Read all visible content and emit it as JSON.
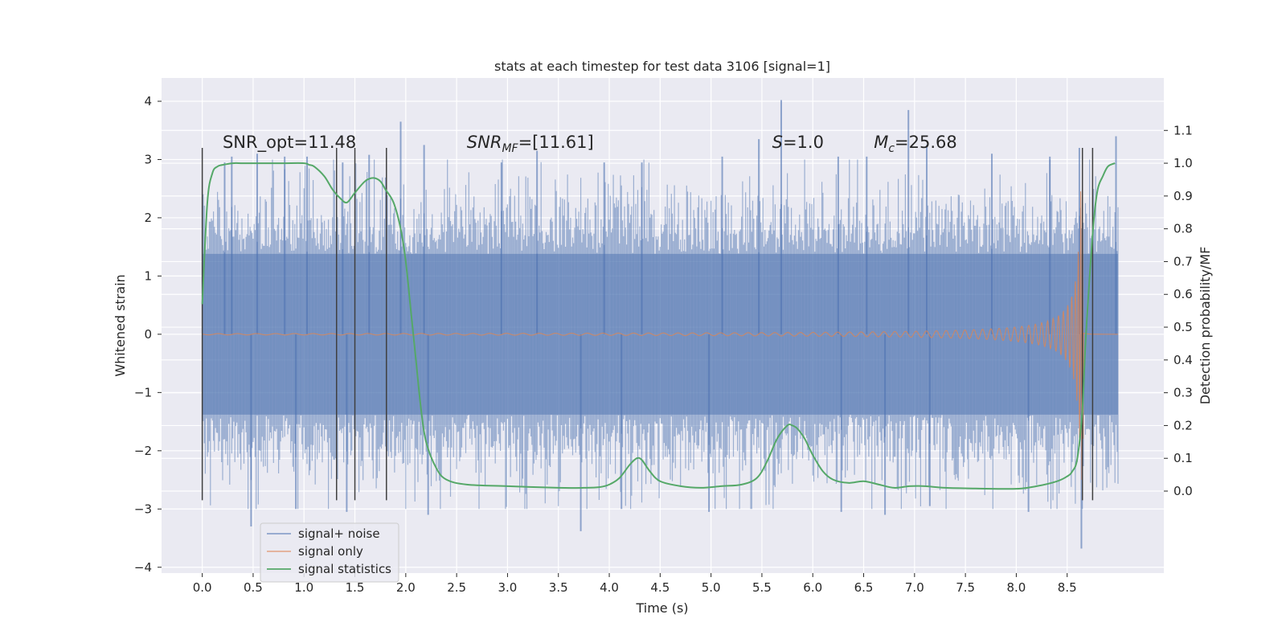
{
  "chart_data": {
    "type": "line",
    "title": "stats at each timestep for test data 3106 [signal=1]",
    "xlabel": "Time (s)",
    "ylabel": "Whitened strain",
    "y2label": "Detection probability/MF",
    "xlim": [
      -0.4,
      9.45
    ],
    "ylim": [
      -4.1,
      4.4
    ],
    "y2lim": [
      -0.25,
      1.26
    ],
    "xticks": [
      0.0,
      0.5,
      1.0,
      1.5,
      2.0,
      2.5,
      3.0,
      3.5,
      4.0,
      4.5,
      5.0,
      5.5,
      6.0,
      6.5,
      7.0,
      7.5,
      8.0,
      8.5
    ],
    "xtick_labels": [
      "0.0",
      "0.5",
      "1.0",
      "1.5",
      "2.0",
      "2.5",
      "3.0",
      "3.5",
      "4.0",
      "4.5",
      "5.0",
      "5.5",
      "6.0",
      "6.5",
      "7.0",
      "7.5",
      "8.0",
      "8.5"
    ],
    "yticks": [
      -4,
      -3,
      -2,
      -1,
      0,
      1,
      2,
      3,
      4
    ],
    "ytick_labels": [
      "−4",
      "−3",
      "−2",
      "−1",
      "0",
      "1",
      "2",
      "3",
      "4"
    ],
    "y2ticks": [
      0.0,
      0.1,
      0.2,
      0.3,
      0.4,
      0.5,
      0.6,
      0.7,
      0.8,
      0.9,
      1.0,
      1.1
    ],
    "y2tick_labels": [
      "0.0",
      "0.1",
      "0.2",
      "0.3",
      "0.4",
      "0.5",
      "0.6",
      "0.7",
      "0.8",
      "0.9",
      "1.0",
      "1.1"
    ],
    "grid": true,
    "legend_position": "lower-left",
    "legend": [
      "signal+ noise",
      "signal only",
      "signal statistics"
    ],
    "colors": {
      "noise": "#4c72b0",
      "signal": "#dd8452",
      "stats": "#55a868",
      "vline": "#404040",
      "background": "#eaeaf2",
      "grid": "#ffffff"
    },
    "annotations": [
      {
        "label": "SNR_opt=11.48",
        "x": 0.2
      },
      {
        "label_main": "SNR",
        "label_sub": "MF",
        "label_suffix": "=[11.61]",
        "x": 2.6
      },
      {
        "label_main": "S",
        "label_suffix": "=1.0",
        "x": 5.6
      },
      {
        "label_main": "M",
        "label_sub": "c",
        "label_suffix": "=25.68",
        "x": 6.6
      }
    ],
    "annotation_y": 3.2,
    "vlines": [
      0.0,
      1.32,
      1.5,
      1.81,
      8.65,
      8.75
    ],
    "vline_range": [
      -2.85,
      3.2
    ],
    "signal_plus_noise": {
      "x_range": [
        0.0,
        9.0
      ],
      "core_amplitude": 1.38,
      "peaks": [
        {
          "x": 0.22,
          "y": 2.95
        },
        {
          "x": 0.29,
          "y": 3.05
        },
        {
          "x": 0.54,
          "y": 3.1
        },
        {
          "x": 0.81,
          "y": 3.05
        },
        {
          "x": 1.03,
          "y": 3.05
        },
        {
          "x": 1.38,
          "y": 2.95
        },
        {
          "x": 1.64,
          "y": 3.08
        },
        {
          "x": 1.95,
          "y": 3.65
        },
        {
          "x": 2.18,
          "y": 3.25
        },
        {
          "x": 2.94,
          "y": 2.95
        },
        {
          "x": 3.29,
          "y": 3.15
        },
        {
          "x": 3.95,
          "y": 2.95
        },
        {
          "x": 4.32,
          "y": 2.95
        },
        {
          "x": 5.11,
          "y": 3.05
        },
        {
          "x": 5.47,
          "y": 3.35
        },
        {
          "x": 5.69,
          "y": 4.02
        },
        {
          "x": 6.25,
          "y": 3.05
        },
        {
          "x": 6.53,
          "y": 3.05
        },
        {
          "x": 6.94,
          "y": 3.85
        },
        {
          "x": 7.12,
          "y": 3.25
        },
        {
          "x": 7.76,
          "y": 3.1
        },
        {
          "x": 8.33,
          "y": 3.05
        },
        {
          "x": 8.62,
          "y": 3.2
        },
        {
          "x": 8.98,
          "y": 3.4
        }
      ],
      "troughs": [
        {
          "x": 0.48,
          "y": -3.3
        },
        {
          "x": 0.92,
          "y": -3.0
        },
        {
          "x": 1.42,
          "y": -3.05
        },
        {
          "x": 2.22,
          "y": -3.1
        },
        {
          "x": 3.72,
          "y": -3.38
        },
        {
          "x": 4.12,
          "y": -3.0
        },
        {
          "x": 4.98,
          "y": -3.05
        },
        {
          "x": 6.28,
          "y": -3.05
        },
        {
          "x": 6.71,
          "y": -3.1
        },
        {
          "x": 7.15,
          "y": -2.95
        },
        {
          "x": 8.12,
          "y": -3.05
        },
        {
          "x": 8.64,
          "y": -3.68
        }
      ]
    },
    "signal_only": {
      "x_range": [
        0.0,
        9.0
      ],
      "coalescence_time": 8.66,
      "peak_amplitude": 2.5,
      "tail_after_merger": [
        0.02,
        0.0
      ]
    },
    "signal_statistics": {
      "x": [
        0.0,
        0.05,
        0.1,
        0.15,
        0.2,
        0.3,
        0.4,
        0.6,
        0.8,
        1.0,
        1.05,
        1.1,
        1.2,
        1.28,
        1.35,
        1.42,
        1.5,
        1.6,
        1.68,
        1.75,
        1.8,
        1.88,
        1.95,
        2.0,
        2.05,
        2.1,
        2.15,
        2.2,
        2.3,
        2.4,
        2.6,
        3.0,
        3.5,
        3.75,
        3.9,
        4.0,
        4.1,
        4.2,
        4.27,
        4.32,
        4.4,
        4.5,
        4.7,
        4.9,
        5.1,
        5.3,
        5.45,
        5.55,
        5.65,
        5.75,
        5.8,
        5.85,
        5.92,
        6.0,
        6.1,
        6.2,
        6.35,
        6.5,
        6.65,
        6.8,
        6.95,
        7.1,
        7.3,
        7.6,
        8.0,
        8.2,
        8.4,
        8.5,
        8.55,
        8.6,
        8.65,
        8.68,
        8.72,
        8.76,
        8.8,
        8.85,
        8.9,
        8.97
      ],
      "y": [
        0.57,
        0.88,
        0.97,
        0.99,
        0.995,
        1.0,
        1.0,
        1.0,
        1.0,
        1.0,
        0.995,
        0.99,
        0.96,
        0.92,
        0.895,
        0.88,
        0.91,
        0.945,
        0.955,
        0.945,
        0.92,
        0.88,
        0.8,
        0.7,
        0.55,
        0.4,
        0.25,
        0.15,
        0.07,
        0.035,
        0.02,
        0.015,
        0.01,
        0.01,
        0.012,
        0.02,
        0.04,
        0.08,
        0.1,
        0.095,
        0.06,
        0.03,
        0.015,
        0.01,
        0.015,
        0.02,
        0.04,
        0.09,
        0.16,
        0.2,
        0.2,
        0.19,
        0.16,
        0.11,
        0.06,
        0.035,
        0.025,
        0.03,
        0.02,
        0.01,
        0.015,
        0.015,
        0.01,
        0.008,
        0.007,
        0.015,
        0.03,
        0.045,
        0.06,
        0.1,
        0.25,
        0.45,
        0.65,
        0.82,
        0.92,
        0.96,
        0.99,
        1.0
      ]
    }
  }
}
